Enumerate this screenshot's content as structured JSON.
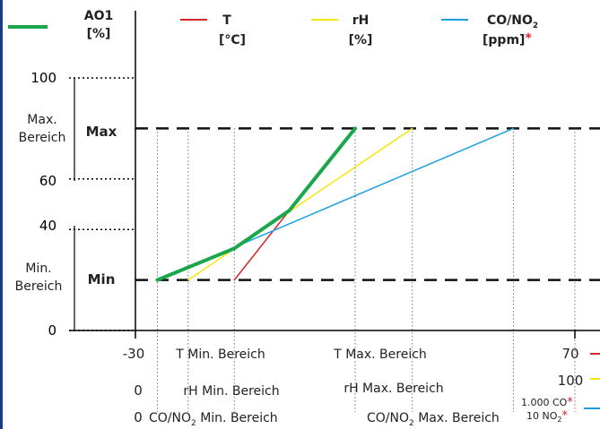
{
  "chart_data": {
    "type": "line",
    "legend": [
      {
        "name": "AO1",
        "unit": "[%]",
        "color": "#1aa64a"
      },
      {
        "name": "T",
        "unit": "[°C]",
        "color": "#d62728"
      },
      {
        "name": "rH",
        "unit": "[%]",
        "color": "#f5e60a"
      },
      {
        "name": "CO/NO",
        "sub": "2",
        "unit": "[ppm]",
        "asterisk": "*",
        "color": "#1aa0e0"
      }
    ],
    "x_domain": [
      -30,
      70
    ],
    "y_ticks": [
      {
        "value": 0,
        "label": "0"
      },
      {
        "value": 40,
        "label": "40"
      },
      {
        "value": 60,
        "label": "60"
      },
      {
        "value": 100,
        "label": "100"
      }
    ],
    "y_ranges": [
      {
        "label_lines": [
          "Max.",
          "Bereich"
        ],
        "from": 60,
        "to": 100
      },
      {
        "label_lines": [
          "Min.",
          "Bereich"
        ],
        "from": 0,
        "to": 40
      }
    ],
    "levels": [
      {
        "label": "Max",
        "value": 80
      },
      {
        "label": "Min",
        "value": 20
      }
    ],
    "series": [
      {
        "name": "AO1",
        "color": "#1aa64a",
        "width": 4,
        "points": [
          [
            -25,
            20
          ],
          [
            -7.5,
            32.5
          ],
          [
            5,
            47.5
          ],
          [
            20,
            80
          ]
        ]
      },
      {
        "name": "T",
        "color": "#d62728",
        "width": 1.5,
        "points": [
          [
            -7.5,
            20
          ],
          [
            5,
            47.5
          ]
        ]
      },
      {
        "name": "rH",
        "color": "#f5e60a",
        "width": 1.5,
        "points": [
          [
            -18,
            20
          ],
          [
            33,
            80
          ]
        ]
      },
      {
        "name": "CO/NO2",
        "color": "#1aa0e0",
        "width": 1.5,
        "points": [
          [
            -25,
            20
          ],
          [
            56,
            80
          ]
        ]
      }
    ],
    "guides": [
      -25,
      -18,
      -7.5,
      20,
      33,
      56,
      70
    ],
    "x_labels": {
      "T": {
        "min": "-30",
        "min_range": "T Min. Bereich",
        "max_range": "T Max. Bereich",
        "max": "70"
      },
      "rH": {
        "min": "0",
        "min_range": "rH Min. Bereich",
        "max_range": "rH Max. Bereich",
        "max": "100"
      },
      "CO": {
        "min": "0",
        "min_range_pre": "CO/NO",
        "min_range_sub": "2",
        "min_range_post": " Min. Bereich",
        "max_range_pre": "CO/NO",
        "max_range_sub": "2",
        "max_range_post": " Max. Bereich",
        "max_co": "1.000 CO",
        "max_no": "10 NO",
        "max_no_sub": "2",
        "asterisk": "*"
      }
    }
  }
}
